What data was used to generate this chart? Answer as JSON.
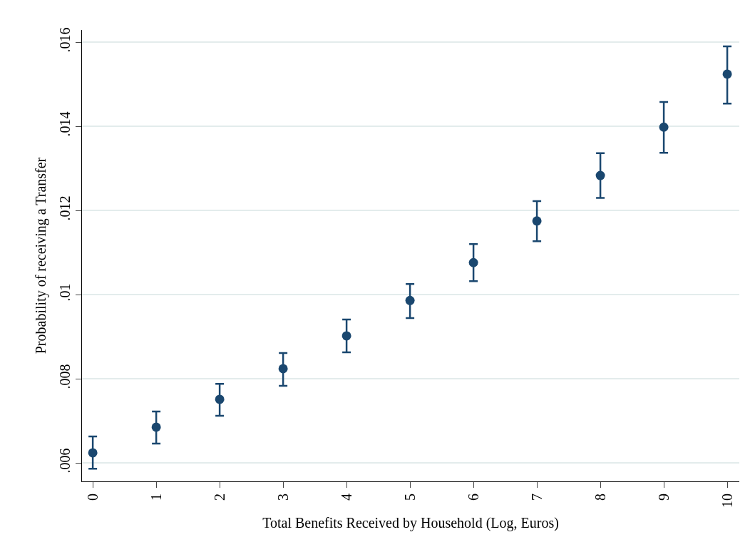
{
  "chart_data": {
    "type": "scatter",
    "xlabel": "Total Benefits Received by Household (Log, Euros)",
    "ylabel": "Probability of receiving a Transfer",
    "x": [
      0,
      1,
      2,
      3,
      4,
      5,
      6,
      7,
      8,
      9,
      10
    ],
    "values": [
      0.00624,
      0.00685,
      0.00751,
      0.00824,
      0.00902,
      0.00986,
      0.01076,
      0.01175,
      0.01283,
      0.01398,
      0.01524
    ],
    "errors": [
      [
        0.00586,
        0.00663
      ],
      [
        0.00646,
        0.00722
      ],
      [
        0.00712,
        0.00788
      ],
      [
        0.00783,
        0.00861
      ],
      [
        0.00863,
        0.00941
      ],
      [
        0.00944,
        0.01025
      ],
      [
        0.01032,
        0.0112
      ],
      [
        0.01127,
        0.01222
      ],
      [
        0.0123,
        0.01336
      ],
      [
        0.01337,
        0.01458
      ],
      [
        0.01454,
        0.0159
      ]
    ],
    "color": "#1a476f",
    "marker": "circle",
    "grid": "y",
    "xlim": [
      -0.17,
      10.19
    ],
    "xticks": [
      0,
      1,
      2,
      3,
      4,
      5,
      6,
      7,
      8,
      9,
      10
    ],
    "ylim": [
      0.00556,
      0.01629
    ],
    "yticks": [
      {
        "value": 0.006,
        "label": ".006"
      },
      {
        "value": 0.008,
        "label": ".008"
      },
      {
        "value": 0.01,
        "label": ".01"
      },
      {
        "value": 0.012,
        "label": ".012"
      },
      {
        "value": 0.014,
        "label": ".014"
      },
      {
        "value": 0.016,
        "label": ".016"
      }
    ]
  }
}
